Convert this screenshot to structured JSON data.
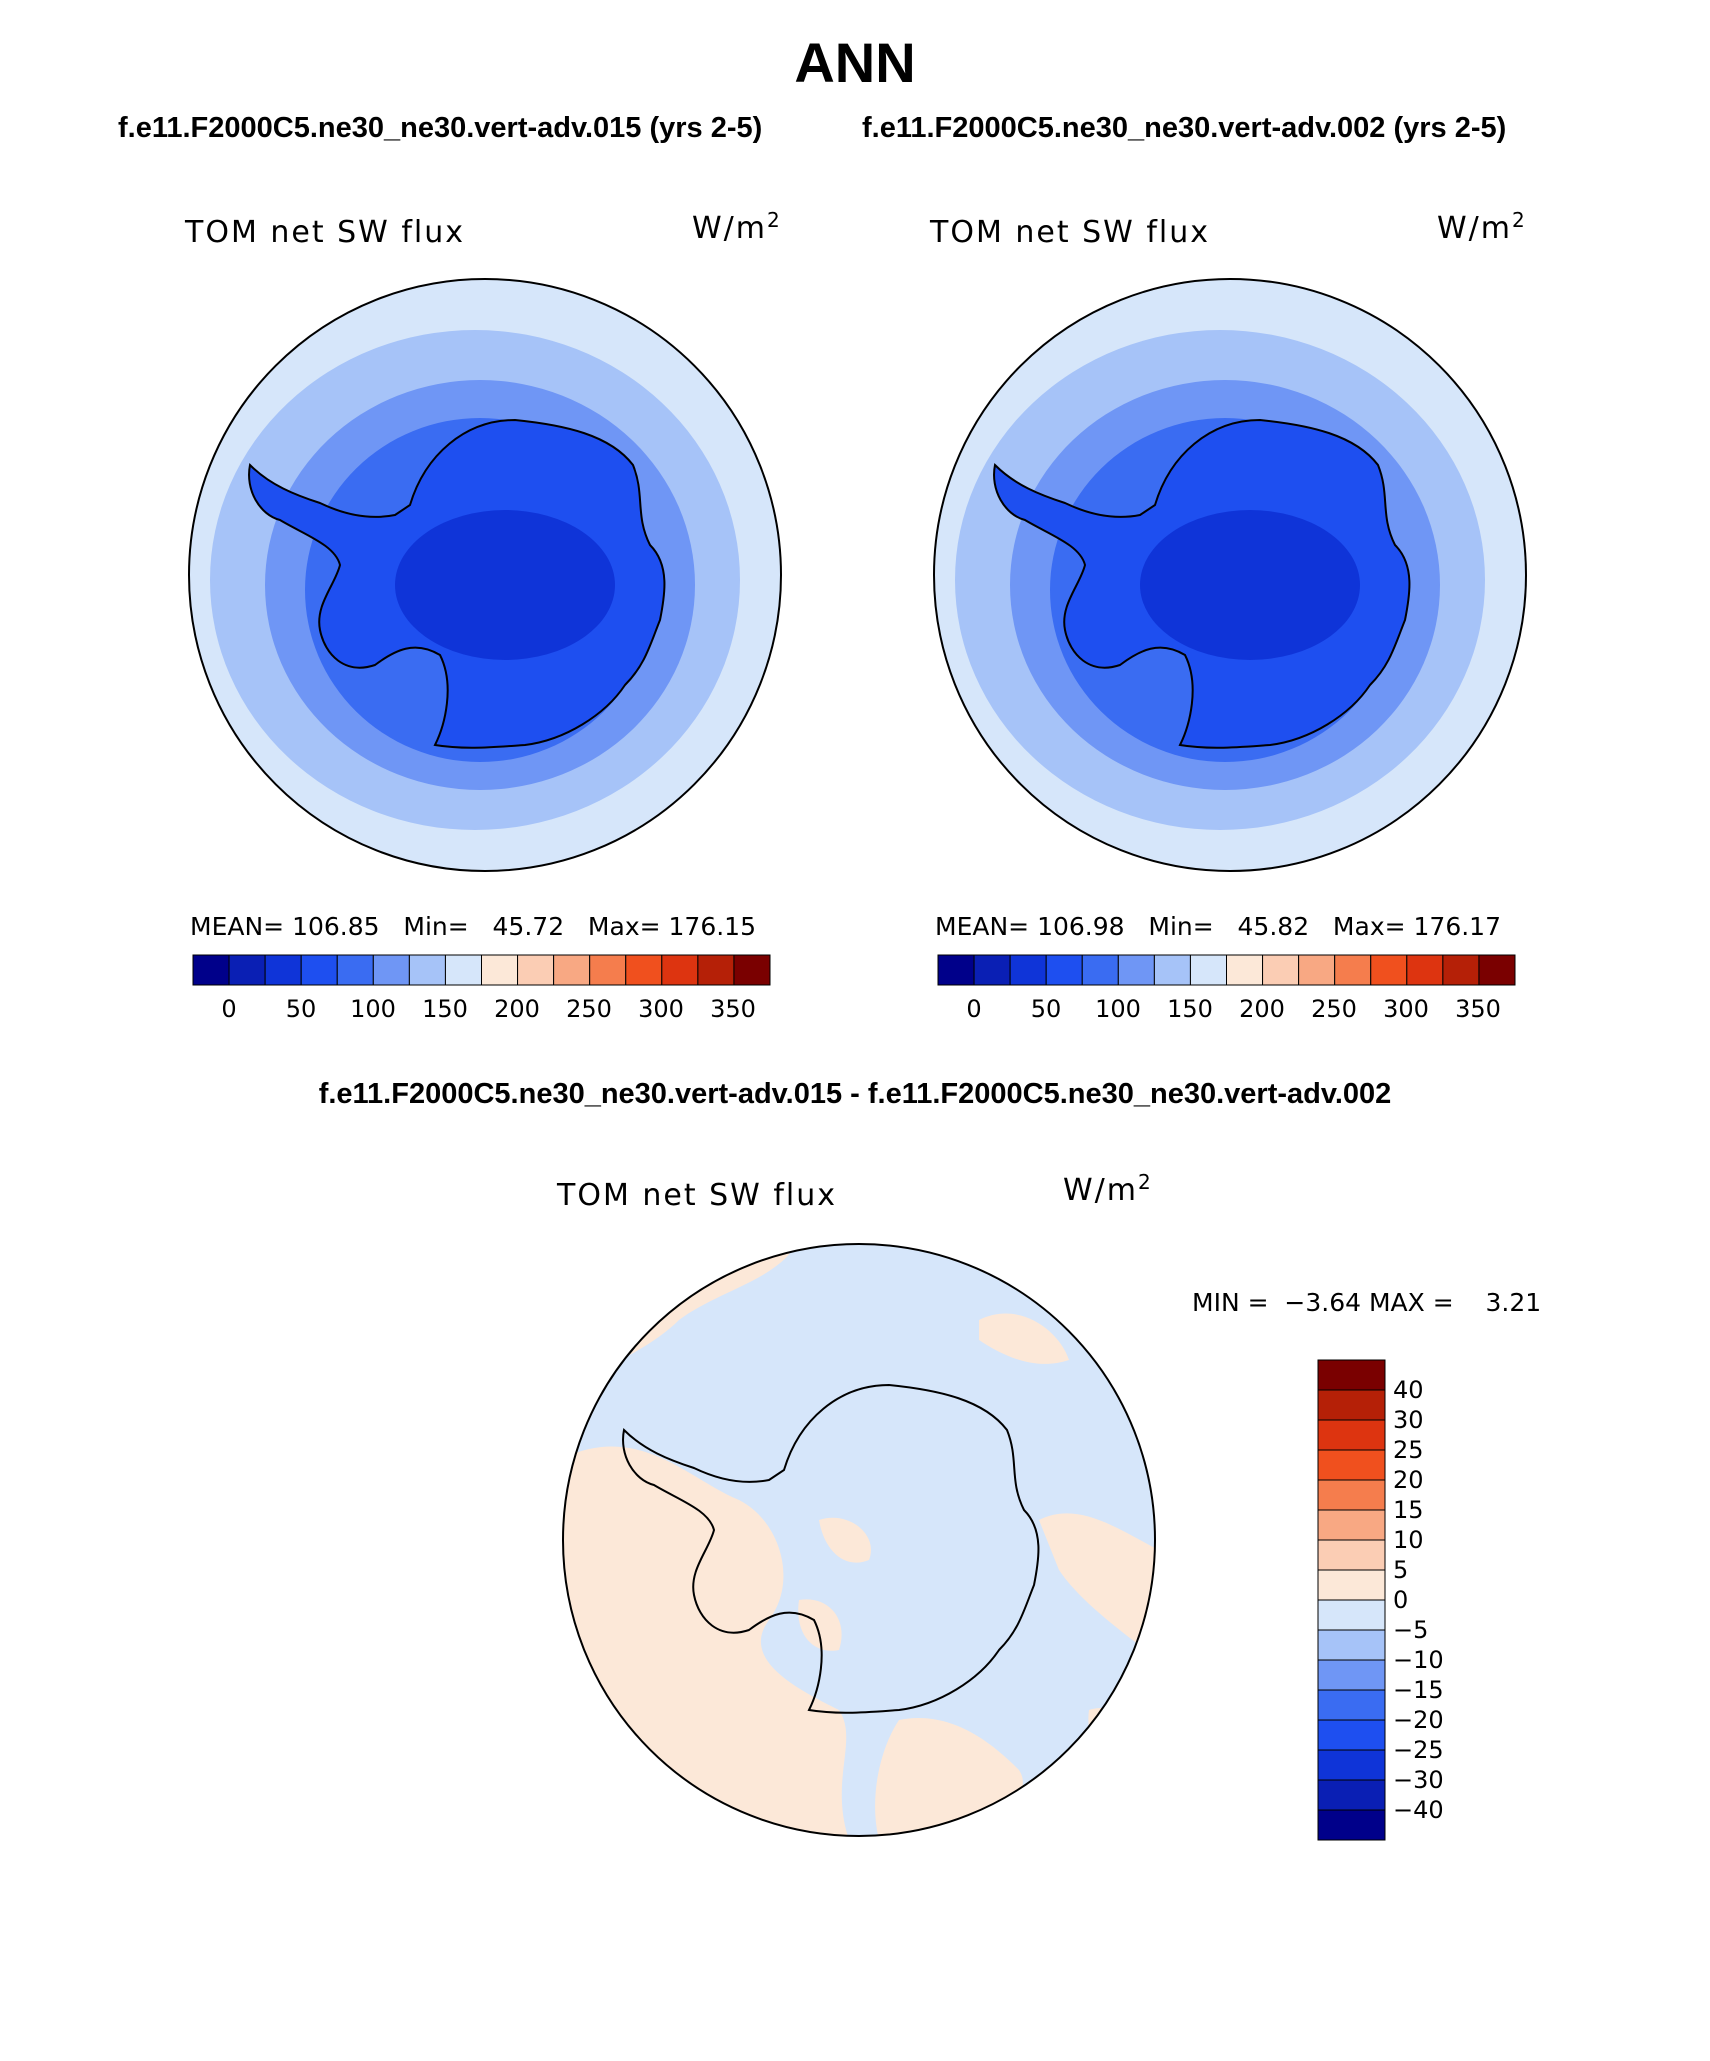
{
  "title": "ANN",
  "panels": [
    {
      "subtitle": "f.e11.F2000C5.ne30_ne30.vert-adv.015 (yrs 2-5)",
      "variable": "TOM net SW flux",
      "units_base": "W/m",
      "units_exp": "2",
      "stats": "MEAN= 106.85   Min=   45.72   Max= 176.15",
      "colorbar_ticks": [
        "0",
        "50",
        "100",
        "150",
        "200",
        "250",
        "300",
        "350"
      ]
    },
    {
      "subtitle": "f.e11.F2000C5.ne30_ne30.vert-adv.002 (yrs 2-5)",
      "variable": "TOM net SW flux",
      "units_base": "W/m",
      "units_exp": "2",
      "stats": "MEAN= 106.98   Min=   45.82   Max= 176.17",
      "colorbar_ticks": [
        "0",
        "50",
        "100",
        "150",
        "200",
        "250",
        "300",
        "350"
      ]
    }
  ],
  "diff": {
    "subtitle": "f.e11.F2000C5.ne30_ne30.vert-adv.015 - f.e11.F2000C5.ne30_ne30.vert-adv.002",
    "variable": "TOM net SW flux",
    "units_base": "W/m",
    "units_exp": "2",
    "stats": "MIN =  −3.64 MAX =    3.21",
    "colorbar_ticks": [
      "40",
      "30",
      "25",
      "20",
      "15",
      "10",
      "5",
      "0",
      "−5",
      "−10",
      "−15",
      "−20",
      "−25",
      "−30",
      "−40"
    ]
  },
  "colors": {
    "abs_palette": [
      "#00008a",
      "#0a1fb4",
      "#0f34d8",
      "#1e4ff0",
      "#3a6cf2",
      "#6f96f5",
      "#a6c3f8",
      "#d6e6fa",
      "#fce8d8",
      "#fbcdb4",
      "#f8a883",
      "#f57d4d",
      "#f0501e",
      "#dd3410",
      "#b52007",
      "#7a0000"
    ],
    "diff_palette": [
      "#7a0000",
      "#b52007",
      "#dd3410",
      "#f0501e",
      "#f57d4d",
      "#f8a883",
      "#fbcdb4",
      "#fce8d8",
      "#d6e6fa",
      "#a6c3f8",
      "#6f96f5",
      "#3a6cf2",
      "#1e4ff0",
      "#0f34d8",
      "#0a1fb4",
      "#00008a"
    ]
  }
}
